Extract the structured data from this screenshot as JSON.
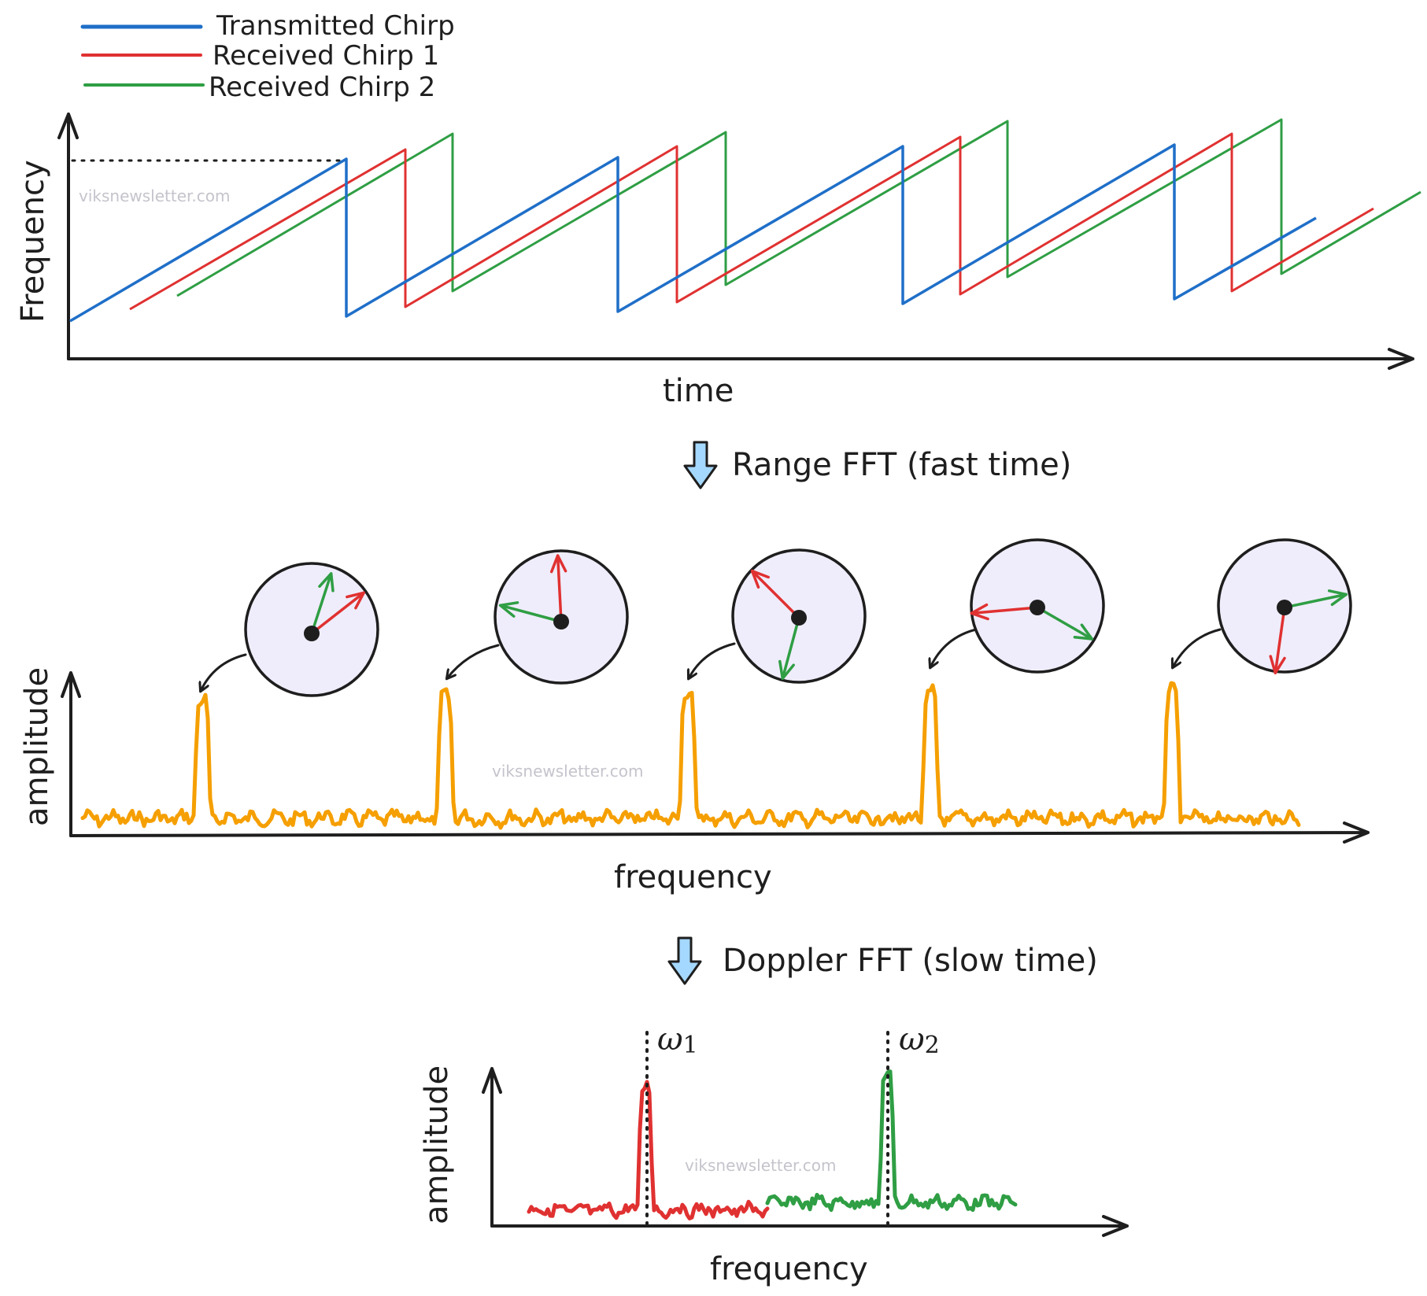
{
  "legend": {
    "transmitted": "Transmitted Chirp",
    "received1": "Received Chirp 1",
    "received2": "Received Chirp 2"
  },
  "top_plot": {
    "ylabel": "Frequency",
    "xlabel": "time"
  },
  "step1_label": "Range FFT (fast time)",
  "middle_plot": {
    "ylabel": "amplitude",
    "xlabel": "frequency"
  },
  "step2_label": "Doppler FFT (slow time)",
  "bottom_plot": {
    "ylabel": "amplitude",
    "xlabel": "frequency",
    "peak1_symbol": "ω",
    "peak1_sub": "1",
    "peak2_symbol": "ω",
    "peak2_sub": "2"
  },
  "watermark": "viksnewsletter.com",
  "colors": {
    "transmitted": "#1f6fc8",
    "received1": "#e03131",
    "received2": "#2f9e44",
    "spectrum": "#f59f00",
    "phasor_fill": "#efedfb",
    "arrow_fill": "#a5d8ff",
    "ink": "#1e1e1e"
  },
  "phasors": [
    {
      "red_angle_deg": 38,
      "green_angle_deg": 72
    },
    {
      "red_angle_deg": 93,
      "green_angle_deg": 165
    },
    {
      "red_angle_deg": 135,
      "green_angle_deg": 255
    },
    {
      "red_angle_deg": 185,
      "green_angle_deg": 330
    },
    {
      "red_angle_deg": 262,
      "green_angle_deg": 12
    }
  ]
}
